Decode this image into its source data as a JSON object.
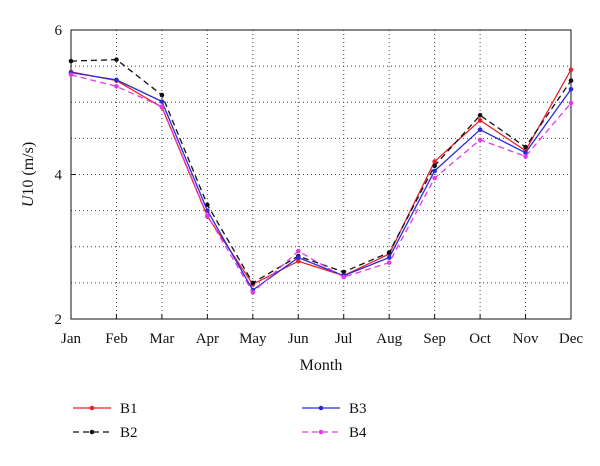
{
  "chart_data": {
    "type": "line",
    "title": "",
    "xlabel": "Month",
    "ylabel_italic": "U",
    "ylabel_rest": "10 (m/s)",
    "categories": [
      "Jan",
      "Feb",
      "Mar",
      "Apr",
      "May",
      "Jun",
      "Jul",
      "Aug",
      "Sep",
      "Oct",
      "Nov",
      "Dec"
    ],
    "ylim": [
      2,
      6
    ],
    "yticks": [
      2,
      4,
      6
    ],
    "grid": true,
    "grid_style": "dotted",
    "legend_position": "below",
    "series": [
      {
        "name": "B1",
        "color": "#e8222b",
        "dash": "solid",
        "marker": "dot",
        "values": [
          5.42,
          5.3,
          4.93,
          3.42,
          2.48,
          2.8,
          2.6,
          2.9,
          4.18,
          4.75,
          4.33,
          5.45
        ]
      },
      {
        "name": "B2",
        "color": "#111111",
        "dash": "dashed",
        "marker": "dot",
        "values": [
          5.57,
          5.59,
          5.1,
          3.58,
          2.5,
          2.87,
          2.65,
          2.92,
          4.12,
          4.82,
          4.38,
          5.3
        ]
      },
      {
        "name": "B3",
        "color": "#2a2ad6",
        "dash": "solid",
        "marker": "dot",
        "values": [
          5.41,
          5.31,
          5.01,
          3.5,
          2.4,
          2.85,
          2.6,
          2.85,
          4.05,
          4.62,
          4.3,
          5.18
        ]
      },
      {
        "name": "B4",
        "color": "#e23ae8",
        "dash": "dashed",
        "marker": "dot",
        "values": [
          5.38,
          5.22,
          4.94,
          3.43,
          2.37,
          2.94,
          2.58,
          2.78,
          3.95,
          4.48,
          4.25,
          4.99
        ]
      }
    ]
  }
}
